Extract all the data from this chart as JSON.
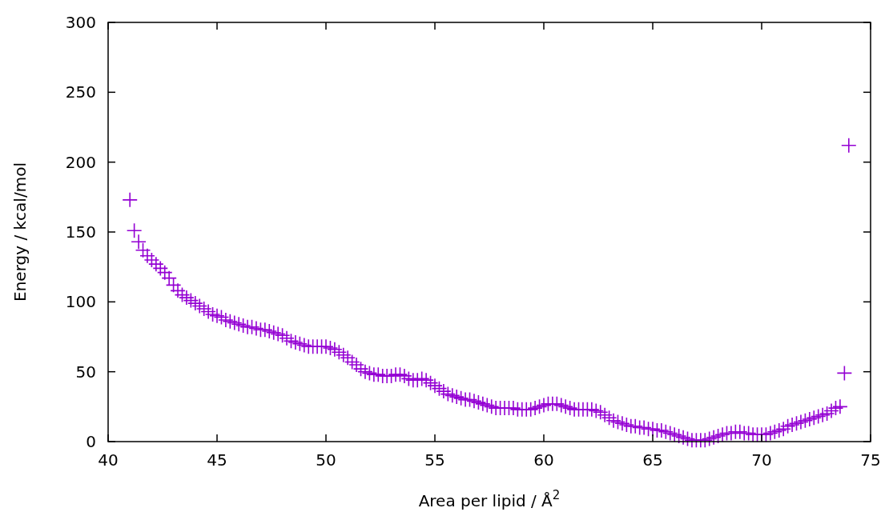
{
  "chart_data": {
    "type": "scatter",
    "xlabel": "Area per lipid / Å$^{2}$",
    "ylabel": "Energy / kcal/mol",
    "xlim": [
      40,
      75
    ],
    "xticks": [
      40,
      45,
      50,
      55,
      60,
      65,
      70,
      75
    ],
    "ylim": [
      0,
      300
    ],
    "yticks": [
      0,
      50,
      100,
      150,
      200,
      250,
      300
    ],
    "marker": "cross",
    "grid": false,
    "series": [
      {
        "color": "#9400d3",
        "x": [
          41.0,
          41.2,
          41.4,
          41.6,
          41.8,
          42.0,
          42.2,
          42.4,
          42.6,
          42.8,
          43.0,
          43.2,
          43.4,
          43.6,
          43.8,
          44.0,
          44.2,
          44.4,
          44.6,
          44.8,
          45.0,
          45.2,
          45.4,
          45.6,
          45.8,
          46.0,
          46.2,
          46.4,
          46.6,
          46.8,
          47.0,
          47.2,
          47.4,
          47.6,
          47.8,
          48.0,
          48.2,
          48.4,
          48.6,
          48.8,
          49.0,
          49.2,
          49.4,
          49.6,
          49.8,
          50.0,
          50.2,
          50.4,
          50.6,
          50.8,
          51.0,
          51.2,
          51.4,
          51.6,
          51.8,
          52.0,
          52.2,
          52.4,
          52.6,
          52.8,
          53.0,
          53.2,
          53.4,
          53.6,
          53.8,
          54.0,
          54.2,
          54.4,
          54.6,
          54.8,
          55.0,
          55.2,
          55.4,
          55.6,
          55.8,
          56.0,
          56.2,
          56.4,
          56.6,
          56.8,
          57.0,
          57.2,
          57.4,
          57.6,
          57.8,
          58.0,
          58.2,
          58.4,
          58.6,
          58.8,
          59.0,
          59.2,
          59.4,
          59.6,
          59.8,
          60.0,
          60.2,
          60.4,
          60.6,
          60.8,
          61.0,
          61.2,
          61.4,
          61.6,
          61.8,
          62.0,
          62.2,
          62.4,
          62.6,
          62.8,
          63.0,
          63.2,
          63.4,
          63.6,
          63.8,
          64.0,
          64.2,
          64.4,
          64.6,
          64.8,
          65.0,
          65.2,
          65.4,
          65.6,
          65.8,
          66.0,
          66.2,
          66.4,
          66.6,
          66.8,
          67.0,
          67.2,
          67.4,
          67.6,
          67.8,
          68.0,
          68.2,
          68.4,
          68.6,
          68.8,
          69.0,
          69.2,
          69.4,
          69.6,
          69.8,
          70.0,
          70.2,
          70.4,
          70.6,
          70.8,
          71.0,
          71.2,
          71.4,
          71.6,
          71.8,
          72.0,
          72.2,
          72.4,
          72.6,
          72.8,
          73.0,
          73.2,
          73.4,
          73.6,
          73.8,
          74.0
        ],
        "values": [
          173,
          151,
          143,
          137,
          133,
          130,
          127,
          124,
          121,
          117,
          112,
          108,
          105,
          103,
          101,
          99,
          97,
          95,
          93,
          91,
          90,
          89,
          87,
          86,
          85,
          84,
          83,
          82,
          82,
          81,
          80,
          80,
          79,
          78,
          77,
          76,
          74,
          72,
          71,
          70,
          69,
          68,
          68,
          68,
          68,
          68,
          67,
          66,
          64,
          62,
          60,
          57,
          55,
          52,
          50,
          49,
          48,
          48,
          47,
          47,
          47,
          48,
          48,
          47,
          45,
          44,
          44,
          45,
          44,
          42,
          40,
          38,
          36,
          34,
          33,
          32,
          31,
          30,
          30,
          29,
          28,
          27,
          26,
          25,
          24,
          24,
          24,
          24,
          24,
          23,
          23,
          23,
          23,
          24,
          25,
          26,
          27,
          27,
          27,
          26,
          25,
          24,
          23,
          23,
          23,
          23,
          23,
          22,
          21,
          19,
          17,
          15,
          14,
          13,
          12,
          11,
          11,
          10,
          10,
          9,
          9,
          8,
          8,
          7,
          6,
          5,
          4,
          3,
          2,
          1,
          1,
          1,
          1,
          2,
          3,
          4,
          5,
          6,
          6,
          7,
          7,
          6,
          6,
          5,
          5,
          5,
          5,
          6,
          7,
          8,
          9,
          11,
          12,
          13,
          14,
          15,
          16,
          17,
          18,
          19,
          20,
          22,
          24,
          25,
          49,
          212
        ]
      }
    ]
  }
}
